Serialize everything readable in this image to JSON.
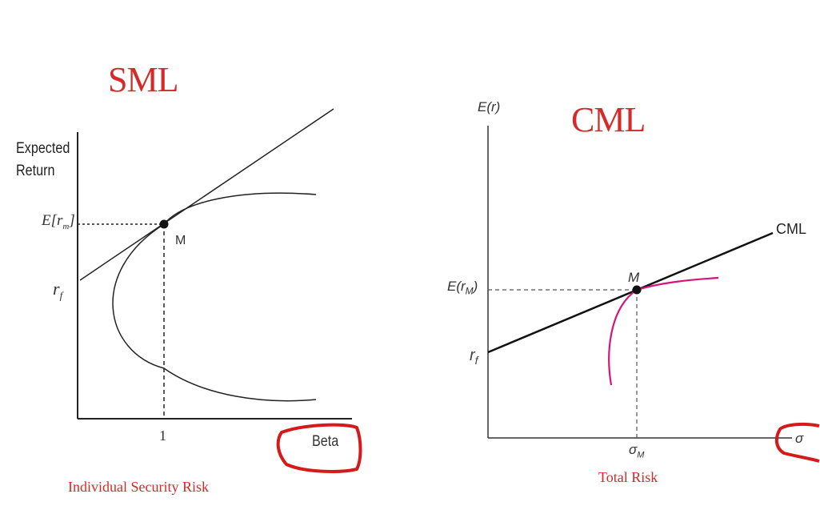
{
  "left_panel": {
    "heading": "SML",
    "y_axis_label_line1": "Expected",
    "y_axis_label_line2": "Return",
    "expected_market_return_label": "E[r",
    "expected_market_return_sub": "m",
    "expected_market_return_close": "]",
    "risk_free_label": "r",
    "risk_free_sub": "f",
    "market_point_label": "M",
    "x_tick_label": "1",
    "x_axis_label": "Beta",
    "caption": "Individual Security Risk"
  },
  "right_panel": {
    "heading": "CML",
    "y_axis_label": "E(r)",
    "line_label": "CML",
    "market_point_label": "M",
    "expected_market_return_label": "E(r",
    "expected_market_return_sub": "M",
    "expected_market_return_close": ")",
    "risk_free_label": "r",
    "risk_free_sub": "f",
    "x_tick_label": "σ",
    "x_tick_sub": "M",
    "x_axis_label": "σ",
    "caption": "Total Risk"
  },
  "colors": {
    "heading_red": "#d42a2a",
    "frontier_magenta": "#d4157a",
    "annotation_circle": "#d41a1a",
    "axis": "#222222"
  }
}
